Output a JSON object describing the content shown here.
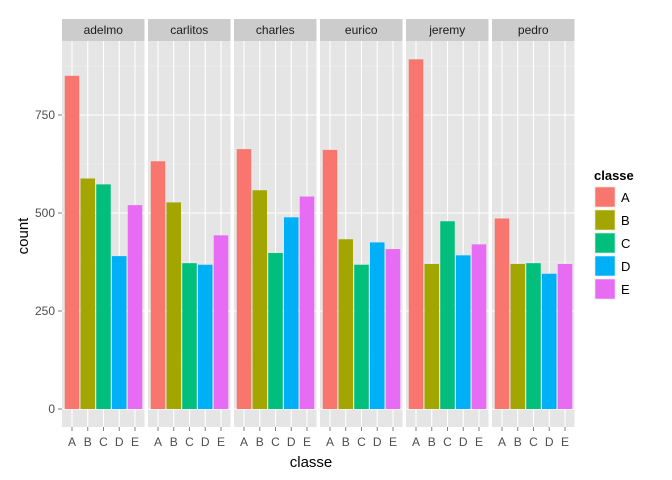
{
  "chart_data": {
    "type": "bar",
    "facet_by": [
      "adelmo",
      "carlitos",
      "charles",
      "eurico",
      "jeremy",
      "pedro"
    ],
    "categories": [
      "A",
      "B",
      "C",
      "D",
      "E"
    ],
    "facets": [
      {
        "name": "adelmo",
        "values": [
          850,
          588,
          573,
          390,
          520
        ]
      },
      {
        "name": "carlitos",
        "values": [
          632,
          527,
          372,
          368,
          443
        ]
      },
      {
        "name": "charles",
        "values": [
          663,
          558,
          398,
          489,
          542
        ]
      },
      {
        "name": "eurico",
        "values": [
          661,
          433,
          368,
          425,
          408
        ]
      },
      {
        "name": "jeremy",
        "values": [
          892,
          370,
          479,
          392,
          420
        ]
      },
      {
        "name": "pedro",
        "values": [
          486,
          370,
          372,
          345,
          370
        ]
      }
    ],
    "xlabel": "classe",
    "ylabel": "count",
    "ylim": [
      -44,
      925
    ],
    "y_ticks": [
      0,
      250,
      500,
      750
    ],
    "grid": true,
    "legend": {
      "title": "classe",
      "position": "right",
      "entries": [
        "A",
        "B",
        "C",
        "D",
        "E"
      ]
    },
    "colors": {
      "A": "#F8766D",
      "B": "#A3A500",
      "C": "#00BF7D",
      "D": "#00B0F6",
      "E": "#E76BF3"
    }
  }
}
